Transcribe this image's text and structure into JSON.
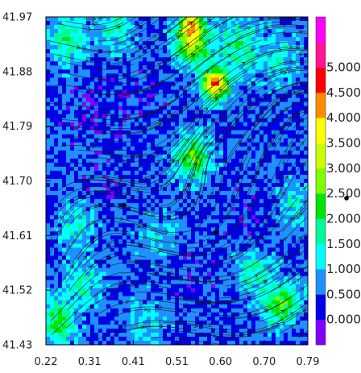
{
  "chart_data": {
    "type": "heatmap",
    "subtype": "wind-speed-contour-with-streamlines",
    "x_ticks": [
      "0.22",
      "0.31",
      "0.41",
      "0.51",
      "0.60",
      "0.70",
      "0.79"
    ],
    "y_ticks": [
      "41.97",
      "41.88",
      "41.79",
      "41.70",
      "41.61",
      "41.52",
      "41.43"
    ],
    "xlim": [
      0.22,
      0.79
    ],
    "ylim": [
      41.43,
      41.97
    ],
    "grid": false,
    "legend": "right",
    "colorbar": {
      "labels": [
        "0.000",
        "0.500",
        "1.000",
        "1.500",
        "2.000",
        "2.500",
        "3.000",
        "3.500",
        "4.000",
        "4.500",
        "5.000"
      ],
      "bins": [
        {
          "from": -0.5,
          "to": 0.0,
          "color": "#8000ff"
        },
        {
          "from": 0.0,
          "to": 0.5,
          "color": "#0000e6"
        },
        {
          "from": 0.5,
          "to": 1.0,
          "color": "#1e90ff"
        },
        {
          "from": 1.0,
          "to": 1.5,
          "color": "#00ffff"
        },
        {
          "from": 1.5,
          "to": 2.0,
          "color": "#00fa9a"
        },
        {
          "from": 2.0,
          "to": 2.5,
          "color": "#00e600"
        },
        {
          "from": 2.5,
          "to": 3.0,
          "color": "#80ff00"
        },
        {
          "from": 3.0,
          "to": 3.5,
          "color": "#ccff00"
        },
        {
          "from": 3.5,
          "to": 4.0,
          "color": "#ffff00"
        },
        {
          "from": 4.0,
          "to": 4.5,
          "color": "#ff8c00"
        },
        {
          "from": 4.5,
          "to": 5.0,
          "color": "#ff0000"
        },
        {
          "from": 5.0,
          "to": 5.5,
          "color": "#ff1493"
        },
        {
          "from": 5.5,
          "to": 6.0,
          "color": "#ff00ff"
        }
      ]
    },
    "field_regions": [
      {
        "x": 0.54,
        "y": 41.93,
        "value": 3.2,
        "spread": 0.05
      },
      {
        "x": 0.59,
        "y": 41.86,
        "value": 4.6,
        "spread": 0.035
      },
      {
        "x": 0.535,
        "y": 41.955,
        "value": 4.4,
        "spread": 0.025
      },
      {
        "x": 0.54,
        "y": 41.74,
        "value": 2.3,
        "spread": 0.05
      },
      {
        "x": 0.64,
        "y": 41.92,
        "value": 1.8,
        "spread": 0.06
      },
      {
        "x": 0.27,
        "y": 41.93,
        "value": 1.9,
        "spread": 0.05
      },
      {
        "x": 0.37,
        "y": 41.95,
        "value": 1.5,
        "spread": 0.05
      },
      {
        "x": 0.73,
        "y": 41.9,
        "value": 1.3,
        "spread": 0.06
      },
      {
        "x": 0.73,
        "y": 41.5,
        "value": 2.4,
        "spread": 0.05
      },
      {
        "x": 0.67,
        "y": 41.55,
        "value": 1.6,
        "spread": 0.05
      },
      {
        "x": 0.25,
        "y": 41.47,
        "value": 2.3,
        "spread": 0.045
      },
      {
        "x": 0.3,
        "y": 41.53,
        "value": 1.6,
        "spread": 0.05
      },
      {
        "x": 0.29,
        "y": 41.63,
        "value": 1.4,
        "spread": 0.05
      },
      {
        "x": 0.47,
        "y": 41.6,
        "value": 1.2,
        "spread": 0.06
      },
      {
        "x": 0.44,
        "y": 41.47,
        "value": 1.3,
        "spread": 0.05
      },
      {
        "x": 0.76,
        "y": 41.66,
        "value": 1.2,
        "spread": 0.05
      },
      {
        "x": 0.33,
        "y": 41.82,
        "value": 0.2,
        "spread": 0.06
      },
      {
        "x": 0.44,
        "y": 41.84,
        "value": 0.3,
        "spread": 0.05
      },
      {
        "x": 0.34,
        "y": 41.7,
        "value": 0.2,
        "spread": 0.05
      },
      {
        "x": 0.52,
        "y": 41.55,
        "value": 0.3,
        "spread": 0.06
      },
      {
        "x": 0.66,
        "y": 41.64,
        "value": 0.3,
        "spread": 0.05
      },
      {
        "x": 0.72,
        "y": 41.76,
        "value": 0.5,
        "spread": 0.05
      }
    ],
    "markers": [
      {
        "x": 0.39,
        "y": 41.66
      },
      {
        "x": 0.59,
        "y": 41.615
      }
    ]
  }
}
